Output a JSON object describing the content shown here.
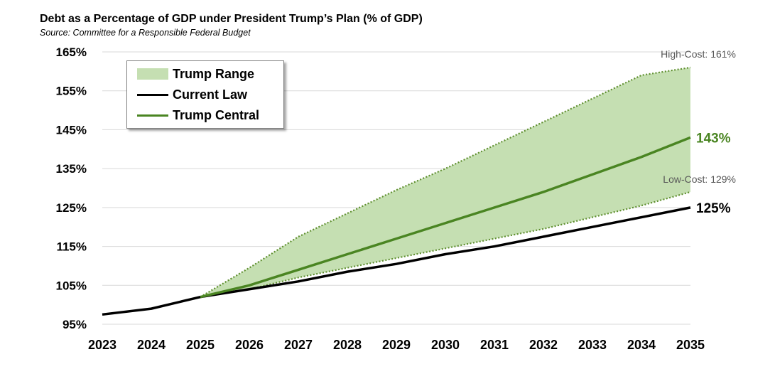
{
  "title": "Debt as a Percentage of GDP under President Trump’s Plan (% of GDP)",
  "subtitle": "Source: Committee for a Responsible Federal Budget",
  "colors": {
    "range_fill": "#c5dfb2",
    "range_edge": "#5f8f2f",
    "current_law": "#000000",
    "trump_central": "#4a8522",
    "annotation_gray": "#595959",
    "grid": "#d9d9d9"
  },
  "legend": {
    "placement": "top-left",
    "items": [
      {
        "label": "Trump Range",
        "kind": "area"
      },
      {
        "label": "Current Law",
        "kind": "line",
        "color": "#000000"
      },
      {
        "label": "Trump Central",
        "kind": "line",
        "color": "#4a8522"
      }
    ]
  },
  "annotations": {
    "high_cost": "High-Cost: 161%",
    "low_cost": "Low-Cost: 129%",
    "central_end": "143%",
    "current_end": "125%"
  },
  "chart_data": {
    "type": "line",
    "title": "Debt as a Percentage of GDP under President Trump’s Plan (% of GDP)",
    "x": [
      2023,
      2024,
      2025,
      2026,
      2027,
      2028,
      2029,
      2030,
      2031,
      2032,
      2033,
      2034,
      2035
    ],
    "x_tick_labels": [
      "2023",
      "2024",
      "2025",
      "2026",
      "2027",
      "2028",
      "2029",
      "2030",
      "2031",
      "2032",
      "2033",
      "2034",
      "2035"
    ],
    "y_tick_labels": [
      "95%",
      "105%",
      "115%",
      "125%",
      "135%",
      "145%",
      "155%",
      "165%"
    ],
    "ylim": [
      95,
      165
    ],
    "grid": true,
    "series": [
      {
        "name": "Current Law",
        "x": [
          2023,
          2024,
          2025,
          2026,
          2027,
          2028,
          2029,
          2030,
          2031,
          2032,
          2033,
          2034,
          2035
        ],
        "values": [
          97.5,
          99,
          102,
          104,
          106,
          108.5,
          110.5,
          113,
          115,
          117.5,
          120,
          122.5,
          125
        ]
      },
      {
        "name": "Trump Central",
        "x": [
          2025,
          2026,
          2027,
          2028,
          2029,
          2030,
          2031,
          2032,
          2033,
          2034,
          2035
        ],
        "values": [
          102,
          105,
          109,
          113,
          117,
          121,
          125,
          129,
          133.5,
          138,
          143
        ]
      },
      {
        "name": "Trump Range",
        "kind": "range",
        "x": [
          2025,
          2026,
          2027,
          2028,
          2029,
          2030,
          2031,
          2032,
          2033,
          2034,
          2035
        ],
        "high": [
          102,
          109.5,
          117.5,
          123.5,
          129.5,
          135,
          141,
          147,
          153,
          159,
          161
        ],
        "low": [
          102,
          104,
          107,
          109.5,
          112,
          114.5,
          117,
          119.5,
          122.5,
          125.5,
          129
        ]
      }
    ]
  }
}
